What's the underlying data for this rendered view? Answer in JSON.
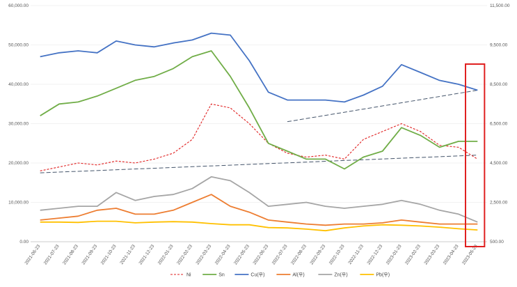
{
  "chart_data": {
    "type": "line",
    "title": "",
    "xlabel": "",
    "ylabel": "",
    "ylim_left": [
      0,
      60000
    ],
    "ylim_right": [
      500,
      11500
    ],
    "left_ticks": [
      "0.00",
      "10,000.00",
      "20,000.00",
      "30,000.00",
      "40,000.00",
      "50,000.00",
      "60,000.00"
    ],
    "right_ticks": [
      "500.00",
      "2,500.00",
      "4,500.00",
      "6,500.00",
      "8,500.00",
      "9,500.00",
      "11,500.00"
    ],
    "x_ticks": [
      "2021-06-23",
      "2021-07-23",
      "2021-08-23",
      "2021-09-23",
      "2021-10-23",
      "2021-11-23",
      "2021-12-23",
      "2022-01-23",
      "2022-02-23",
      "2022-03-23",
      "2022-04-23",
      "2022-05-23",
      "2022-06-23",
      "2022-07-23",
      "2022-08-23",
      "2022-09-23",
      "2022-10-23",
      "2022-11-23",
      "2022-12-23",
      "2023-01-23",
      "2023-02-23",
      "2023-03-23",
      "2023-04-23",
      "2023-05-23"
    ],
    "grid": true,
    "legend_position": "bottom",
    "highlight_box": {
      "from": "2023-04-23",
      "to": "2023-05-23",
      "color": "#e02020"
    },
    "series": [
      {
        "name": "Ni",
        "axis": "left",
        "color": "#e02020",
        "dash": true,
        "values": [
          18000,
          19000,
          20000,
          19500,
          20500,
          20000,
          21000,
          22500,
          26000,
          35000,
          34000,
          30000,
          25000,
          22500,
          21500,
          22000,
          21000,
          26000,
          28000,
          30000,
          28000,
          24500,
          24000,
          21000
        ]
      },
      {
        "name": "Sn",
        "axis": "left",
        "color": "#70ad47",
        "dash": false,
        "values": [
          32000,
          35000,
          35500,
          37000,
          39000,
          41000,
          42000,
          44000,
          47000,
          48500,
          42000,
          34000,
          25000,
          23000,
          21000,
          21000,
          18500,
          21500,
          23000,
          29000,
          27000,
          24000,
          25500,
          25500
        ]
      },
      {
        "name": "Cu(우)",
        "axis": "right",
        "color": "#4472c4",
        "dash": false,
        "values": [
          9200,
          9300,
          9350,
          9300,
          9700,
          9500,
          9450,
          9600,
          9750,
          10100,
          10000,
          9100,
          8100,
          7700,
          7700,
          7700,
          7600,
          7950,
          8400,
          9000,
          8800,
          8600,
          8500,
          8200
        ]
      },
      {
        "name": "Al(우)",
        "axis": "left",
        "color": "#ed7d31",
        "dash": false,
        "values": [
          5500,
          6000,
          6500,
          8000,
          8500,
          7000,
          7000,
          8000,
          10000,
          12000,
          9000,
          7500,
          5500,
          5000,
          4500,
          4200,
          4500,
          4500,
          4800,
          5500,
          5000,
          4500,
          4500,
          4500
        ]
      },
      {
        "name": "Zn(우)",
        "axis": "left",
        "color": "#a5a5a5",
        "dash": false,
        "values": [
          8000,
          8500,
          9000,
          9000,
          12500,
          10500,
          11500,
          12000,
          13500,
          16500,
          15500,
          12500,
          9000,
          9500,
          10000,
          9000,
          8500,
          9000,
          9500,
          10500,
          9500,
          8000,
          7000,
          5000
        ]
      },
      {
        "name": "Pb(우)",
        "axis": "left",
        "color": "#ffc000",
        "dash": false,
        "values": [
          5000,
          5000,
          4900,
          5200,
          5200,
          4800,
          5000,
          5100,
          5000,
          4600,
          4300,
          4300,
          3600,
          3500,
          3200,
          2800,
          3500,
          4000,
          4300,
          4200,
          4000,
          3700,
          3300,
          3000
        ]
      }
    ],
    "trend_lines": [
      {
        "color": "#44546a",
        "from": [
          "2021-06-23",
          17500
        ],
        "to": [
          "2023-05-23",
          22000
        ]
      },
      {
        "color": "#44546a",
        "from": [
          "2022-07-23",
          30500
        ],
        "to": [
          "2023-05-23",
          38500
        ]
      }
    ]
  }
}
